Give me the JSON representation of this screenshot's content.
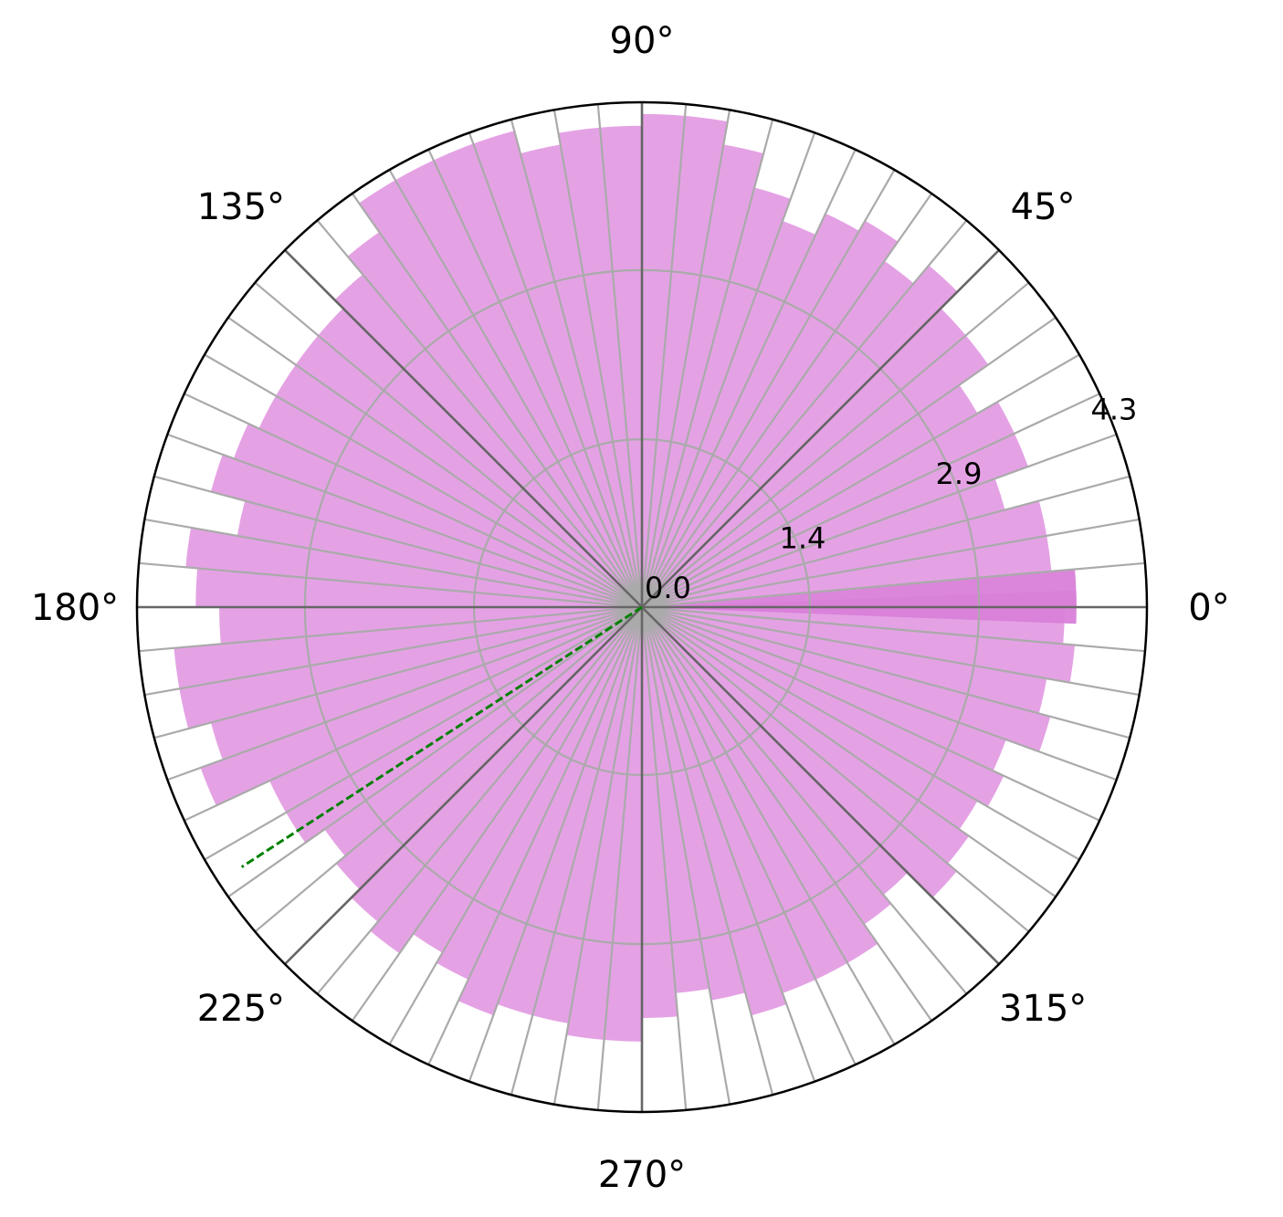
{
  "chart_data": {
    "type": "polar-bar",
    "title": "",
    "bin_count": 72,
    "bin_width_deg": 5,
    "theta_start_deg": 0,
    "values": [
      3.7,
      3.5,
      3.5,
      3.2,
      3.5,
      3.5,
      3.3,
      3.6,
      3.6,
      3.8,
      3.6,
      3.8,
      3.7,
      3.5,
      3.7,
      4.0,
      4.2,
      4.2,
      4.1,
      4.1,
      4.0,
      4.2,
      4.2,
      4.2,
      4.2,
      3.9,
      3.7,
      3.6,
      3.6,
      3.6,
      3.6,
      3.7,
      3.8,
      3.5,
      3.9,
      3.8,
      3.6,
      4.0,
      4.0,
      3.8,
      4.0,
      3.5,
      3.5,
      3.3,
      3.4,
      3.5,
      3.6,
      3.4,
      3.5,
      3.7,
      3.6,
      3.6,
      3.7,
      3.7,
      3.5,
      3.3,
      3.4,
      3.6,
      3.5,
      3.5,
      3.5,
      3.3,
      3.2,
      3.5,
      3.4,
      3.3,
      3.4,
      3.3,
      3.6,
      3.5,
      3.7,
      3.6
    ],
    "highlight_bin": 0,
    "highlight_value": 3.7,
    "highlight_color": "#d97fd9",
    "bar_color": "#dd88dd",
    "bar_alpha": 0.78,
    "r_max": 4.3,
    "radial_ticks": [
      "0.0",
      "1.4",
      "2.9",
      "4.3"
    ],
    "radial_tick_values": [
      0,
      1.43,
      2.87,
      4.3
    ],
    "angle_ticks": [
      "0°",
      "45°",
      "90°",
      "135°",
      "180°",
      "225°",
      "270°",
      "315°"
    ],
    "angle_tick_values": [
      0,
      45,
      90,
      135,
      180,
      225,
      270,
      315
    ],
    "mean_direction_deg": 213,
    "mean_line_color": "#008000",
    "mean_line_style": "dashed",
    "grid": true,
    "grid_color": "#aaaaaa",
    "major_axis_color": "#666666"
  }
}
